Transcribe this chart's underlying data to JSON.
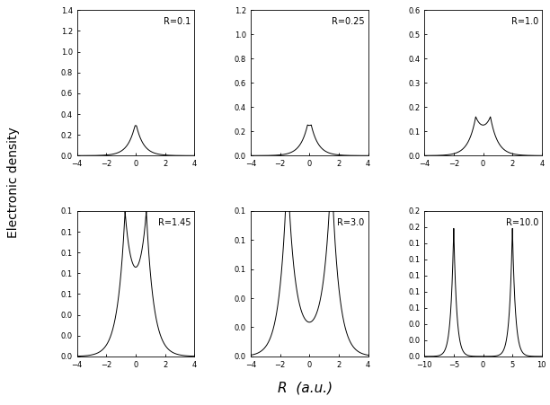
{
  "panels": [
    {
      "R": 0.1,
      "label": "R=0.1",
      "xlim": [
        -4,
        4
      ],
      "ylim": [
        0,
        1.4
      ],
      "yticks": [
        0.0,
        0.2,
        0.4,
        0.6,
        0.8,
        1.0,
        1.2,
        1.4
      ],
      "xticks": [
        -4,
        -2,
        0,
        2,
        4
      ]
    },
    {
      "R": 0.25,
      "label": "R=0.25",
      "xlim": [
        -4,
        4
      ],
      "ylim": [
        0,
        1.2
      ],
      "yticks": [
        0.0,
        0.2,
        0.4,
        0.6,
        0.8,
        1.0,
        1.2
      ],
      "xticks": [
        -4,
        -2,
        0,
        2,
        4
      ]
    },
    {
      "R": 1.0,
      "label": "R=1.0",
      "xlim": [
        -4,
        4
      ],
      "ylim": [
        0,
        0.6
      ],
      "yticks": [
        0.0,
        0.1,
        0.2,
        0.3,
        0.4,
        0.5,
        0.6
      ],
      "xticks": [
        -4,
        -2,
        0,
        2,
        4
      ]
    },
    {
      "R": 1.45,
      "label": "R=1.45",
      "xlim": [
        -4,
        4
      ],
      "ylim": [
        0,
        0.14
      ],
      "yticks": [
        0.0,
        0.02,
        0.04,
        0.06,
        0.08,
        0.1,
        0.12,
        0.14
      ],
      "xticks": [
        -4,
        -2,
        0,
        2,
        4
      ]
    },
    {
      "R": 3.0,
      "label": "R=3.0",
      "xlim": [
        -4,
        4
      ],
      "ylim": [
        0,
        0.1
      ],
      "yticks": [
        0.0,
        0.02,
        0.04,
        0.06,
        0.08,
        0.1
      ],
      "xticks": [
        -4,
        -2,
        0,
        2,
        4
      ]
    },
    {
      "R": 10.0,
      "label": "R=10.0",
      "xlim": [
        -10,
        10
      ],
      "ylim": [
        0,
        0.18
      ],
      "yticks": [
        0.0,
        0.02,
        0.04,
        0.06,
        0.08,
        0.1,
        0.12,
        0.14,
        0.16,
        0.18
      ],
      "xticks": [
        -10,
        -5,
        0,
        5,
        10
      ]
    }
  ],
  "xlabel": "R  (a.u.)",
  "ylabel": "Electronic density",
  "fig_bg": "#ffffff",
  "line_color": "#000000",
  "num_points": 3000
}
